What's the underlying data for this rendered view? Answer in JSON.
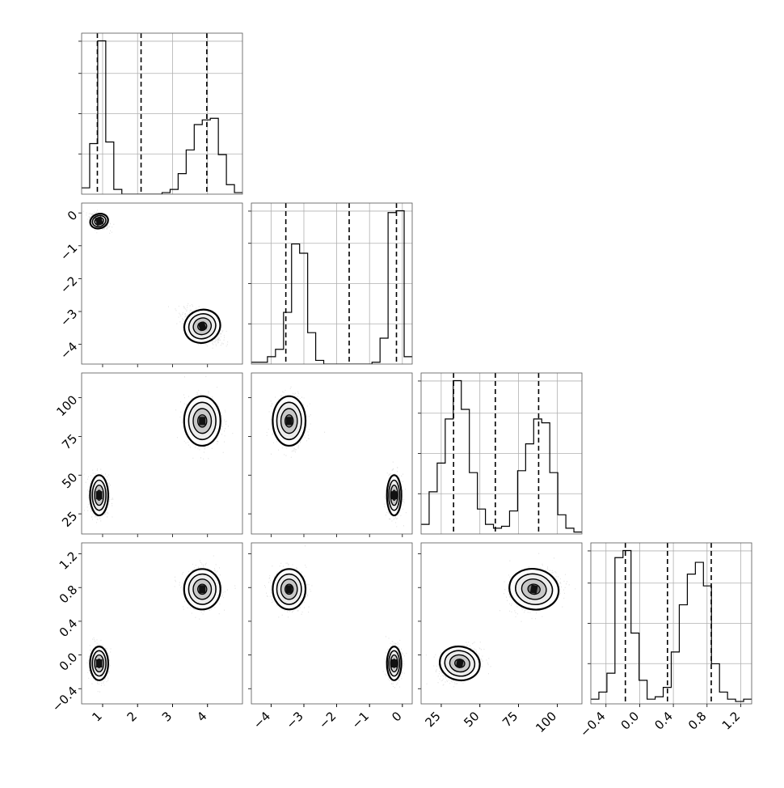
{
  "chart_data": {
    "type": "corner",
    "colors": {
      "line": "#000000",
      "grid": "#b0b0b0",
      "points": "#000000"
    },
    "grid": true,
    "quantiles_style": "dashed",
    "params": [
      {
        "range": [
          0.4,
          5.0
        ],
        "ticks": [
          1,
          2,
          3,
          4
        ],
        "tick_labels": [
          "1",
          "2",
          "3",
          "4"
        ],
        "quantiles": [
          0.85,
          2.1,
          3.98
        ]
      },
      {
        "range": [
          -4.6,
          0.3
        ],
        "ticks": [
          0,
          -1,
          -2,
          -3,
          -4
        ],
        "tick_labels": [
          "0",
          "−1",
          "−2",
          "−3",
          "−4"
        ],
        "quantiles": [
          -3.55,
          -1.62,
          -0.18
        ]
      },
      {
        "range": [
          12,
          116
        ],
        "ticks": [
          25,
          50,
          75,
          100
        ],
        "tick_labels": [
          "25",
          "50",
          "75",
          "100"
        ],
        "quantiles": [
          33,
          60,
          88
        ]
      },
      {
        "range": [
          -0.58,
          1.33
        ],
        "ticks": [
          -0.4,
          0.0,
          0.4,
          0.8,
          1.2
        ],
        "tick_labels": [
          "−0.4",
          "0.0",
          "0.4",
          "0.8",
          "1.2"
        ],
        "quantiles": [
          -0.17,
          0.33,
          0.85
        ]
      }
    ],
    "histograms": [
      {
        "param": 0,
        "bin_start": 0.4,
        "bin_width": 0.23,
        "counts": [
          0.04,
          0.32,
          0.97,
          0.33,
          0.03,
          0.0,
          0.0,
          0.0,
          0.0,
          0.0,
          0.01,
          0.03,
          0.13,
          0.28,
          0.44,
          0.47,
          0.48,
          0.25,
          0.06,
          0.01
        ]
      },
      {
        "param": 1,
        "bin_start": -4.6,
        "bin_width": 0.245,
        "counts": [
          0.01,
          0.01,
          0.04,
          0.08,
          0.28,
          0.65,
          0.6,
          0.17,
          0.02,
          0.0,
          0.0,
          0.0,
          0.0,
          0.0,
          0.0,
          0.01,
          0.14,
          0.82,
          0.83,
          0.04
        ]
      },
      {
        "param": 2,
        "bin_start": 12,
        "bin_width": 5.2,
        "counts": [
          0.05,
          0.22,
          0.37,
          0.6,
          0.8,
          0.65,
          0.32,
          0.13,
          0.05,
          0.03,
          0.04,
          0.12,
          0.33,
          0.47,
          0.6,
          0.58,
          0.32,
          0.1,
          0.03,
          0.01
        ]
      },
      {
        "param": 3,
        "bin_start": -0.58,
        "bin_width": 0.0955,
        "counts": [
          0.02,
          0.05,
          0.13,
          0.62,
          0.65,
          0.3,
          0.1,
          0.02,
          0.03,
          0.07,
          0.22,
          0.42,
          0.55,
          0.6,
          0.5,
          0.17,
          0.05,
          0.02,
          0.01,
          0.02
        ]
      }
    ],
    "modes": [
      {
        "means": [
          0.9,
          -0.25,
          37,
          -0.1
        ],
        "sd": [
          0.13,
          0.11,
          6.5,
          0.1
        ],
        "corr": {
          "0-1": -0.5,
          "2-3": 0.3
        }
      },
      {
        "means": [
          3.85,
          -3.45,
          85,
          0.78
        ],
        "sd": [
          0.26,
          0.25,
          8,
          0.12
        ],
        "corr": {
          "0-1": -0.6,
          "2-3": 0.3
        }
      }
    ]
  }
}
